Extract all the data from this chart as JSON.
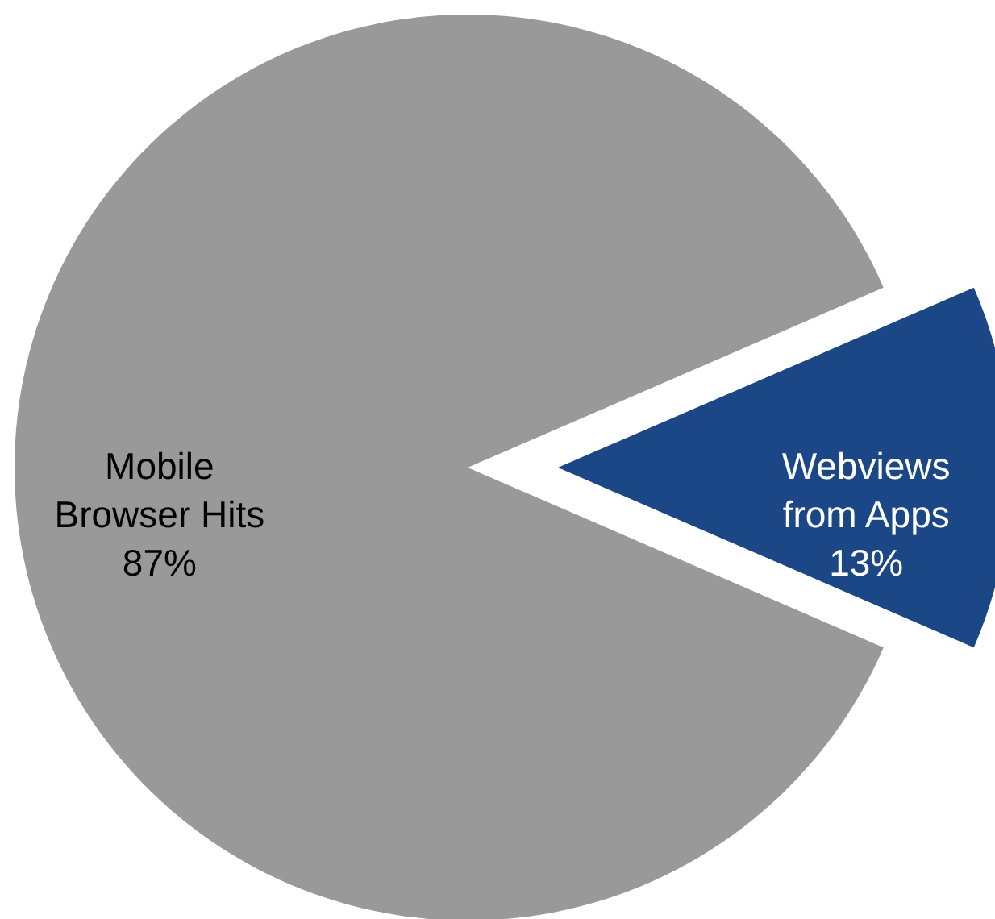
{
  "chart_data": {
    "type": "pie",
    "categories": [
      "Mobile Browser Hits",
      "Webviews from Apps"
    ],
    "values": [
      87,
      13
    ],
    "colors": [
      "#999999",
      "#1c4787"
    ],
    "value_labels": [
      "87%",
      "13%"
    ]
  }
}
